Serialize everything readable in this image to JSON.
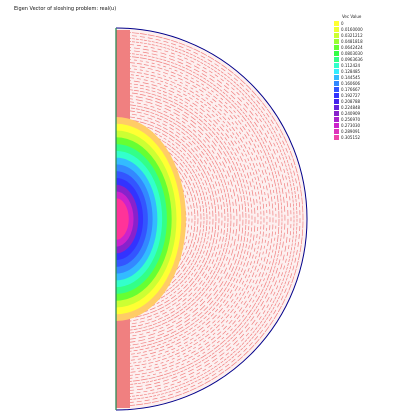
{
  "title": "Eigen Vector of sloshing problem: real(u)",
  "legend": {
    "title": "Vec Value",
    "entries": [
      {
        "label": "0",
        "color": "#ffff33"
      },
      {
        "label": "0.0160000",
        "color": "#eeff33"
      },
      {
        "label": "0.0321212",
        "color": "#ccff33"
      },
      {
        "label": "0.0481818",
        "color": "#99ff33"
      },
      {
        "label": "0.0642424",
        "color": "#66ff33"
      },
      {
        "label": "0.0803030",
        "color": "#33ff44"
      },
      {
        "label": "0.0963636",
        "color": "#33ff88"
      },
      {
        "label": "0.112424",
        "color": "#33ffcc"
      },
      {
        "label": "0.128485",
        "color": "#33eeff"
      },
      {
        "label": "0.144545",
        "color": "#33bbff"
      },
      {
        "label": "0.160606",
        "color": "#3388ff"
      },
      {
        "label": "0.176667",
        "color": "#3355ff"
      },
      {
        "label": "0.192727",
        "color": "#3333ff"
      },
      {
        "label": "0.208788",
        "color": "#4422ee"
      },
      {
        "label": "0.224848",
        "color": "#6622dd"
      },
      {
        "label": "0.240909",
        "color": "#8822cc"
      },
      {
        "label": "0.256970",
        "color": "#aa22cc"
      },
      {
        "label": "0.273030",
        "color": "#cc22cc"
      },
      {
        "label": "0.289091",
        "color": "#dd33bb"
      },
      {
        "label": "0.305152",
        "color": "#ee44aa"
      }
    ]
  },
  "colors": {
    "boundary": "#00008b",
    "axis_line": "#2e8b57",
    "background_field": "#f08080",
    "level_colors": [
      "#ff3399",
      "#cc22cc",
      "#8822cc",
      "#3333ff",
      "#3355ff",
      "#3388ff",
      "#33bbff",
      "#33ffcc",
      "#33ff88",
      "#66ff33",
      "#ccff33",
      "#ffff33",
      "#ffcc66"
    ]
  }
}
